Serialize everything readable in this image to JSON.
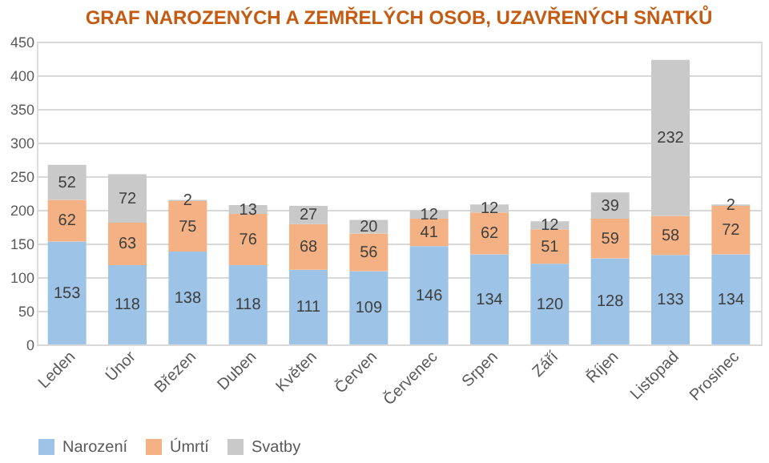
{
  "chart_data": {
    "type": "bar",
    "title": "GRAF NAROZENÝCH A ZEMŘELÝCH OSOB, UZAVŘENÝCH SŇATKŮ",
    "categories": [
      "Leden",
      "Únor",
      "Březen",
      "Duben",
      "Květen",
      "Červen",
      "Červenec",
      "Srpen",
      "Září",
      "Říjen",
      "Listopad",
      "Prosinec"
    ],
    "stacked": true,
    "data_labels": true,
    "grid": "y",
    "legend": "bottom",
    "ylim": [
      0,
      450
    ],
    "yticks": [
      0,
      50,
      100,
      150,
      200,
      250,
      300,
      350,
      400,
      450
    ],
    "series": [
      {
        "name": "Narození",
        "color": "#9dc3e6",
        "values": [
          153,
          118,
          138,
          118,
          111,
          109,
          146,
          134,
          120,
          128,
          133,
          134
        ]
      },
      {
        "name": "Úmrtí",
        "color": "#f4b183",
        "values": [
          62,
          63,
          75,
          76,
          68,
          56,
          41,
          62,
          51,
          59,
          58,
          72
        ]
      },
      {
        "name": "Svatby",
        "color": "#c9c9c9",
        "values": [
          52,
          72,
          2,
          13,
          27,
          20,
          12,
          12,
          12,
          39,
          232,
          2
        ]
      }
    ]
  }
}
